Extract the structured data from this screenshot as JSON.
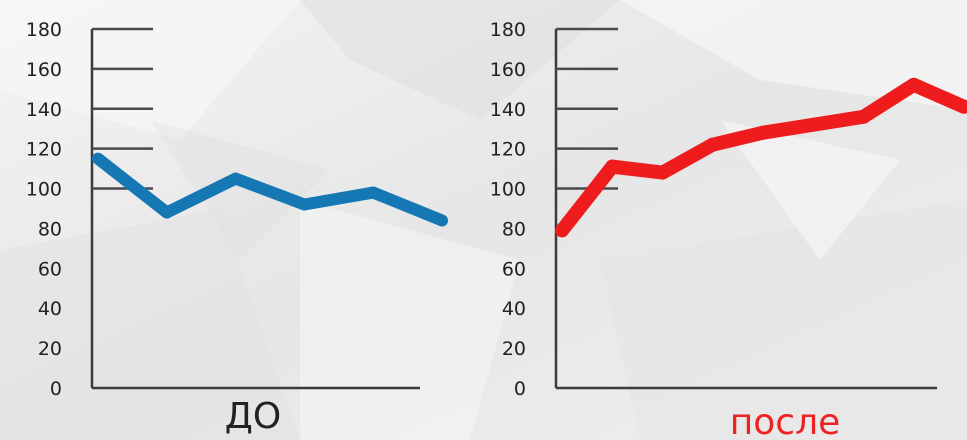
{
  "chart_data": [
    {
      "type": "line",
      "title": "",
      "caption": "ДО",
      "caption_color": "#222222",
      "color": "#1577b3",
      "yticks": [
        "180",
        "160",
        "140",
        "120",
        "100",
        "80",
        "60",
        "40",
        "20",
        "0"
      ],
      "ylim": [
        0,
        180
      ],
      "grid_lines": [
        180,
        160,
        140,
        120,
        100
      ],
      "values": [
        115,
        88,
        105,
        92,
        98,
        84
      ]
    },
    {
      "type": "line",
      "title": "",
      "caption": "после",
      "caption_color": "#ee2222",
      "color": "#ee1c1c",
      "yticks": [
        "180",
        "160",
        "140",
        "120",
        "100",
        "80",
        "60",
        "40",
        "20",
        "0"
      ],
      "ylim": [
        0,
        180
      ],
      "grid_lines": [
        180,
        160,
        140,
        120,
        100
      ],
      "values": [
        79,
        111,
        108,
        122,
        128,
        132,
        136,
        152,
        141
      ]
    }
  ]
}
